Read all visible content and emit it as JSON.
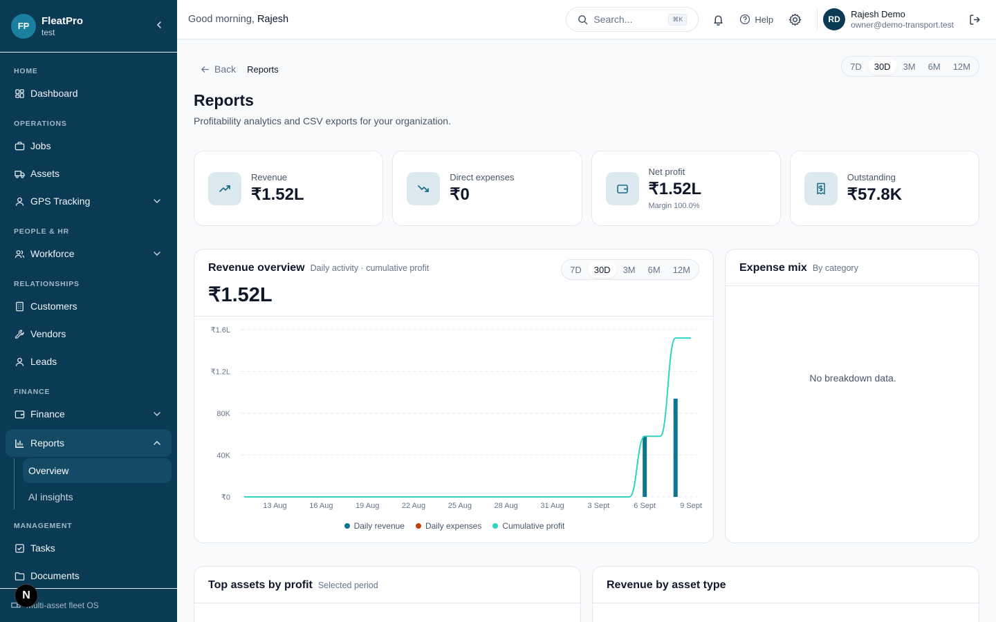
{
  "brand": {
    "initials": "FP",
    "name": "FleatPro",
    "org": "test"
  },
  "sidebar": {
    "sections": {
      "home": "HOME",
      "operations": "OPERATIONS",
      "people": "PEOPLE & HR",
      "relationships": "RELATIONSHIPS",
      "finance": "FINANCE",
      "management": "MANAGEMENT"
    },
    "items": {
      "dashboard": "Dashboard",
      "jobs": "Jobs",
      "assets": "Assets",
      "gps": "GPS Tracking",
      "workforce": "Workforce",
      "customers": "Customers",
      "vendors": "Vendors",
      "leads": "Leads",
      "finance": "Finance",
      "reports": "Reports",
      "overview": "Overview",
      "ai_insights": "AI insights",
      "tasks": "Tasks",
      "documents": "Documents"
    },
    "footer": "Multi-asset fleet OS",
    "badge": "N"
  },
  "header": {
    "greeting": "Good morning,",
    "user_first": "Rajesh",
    "search_placeholder": "Search...",
    "search_kbd": "⌘K",
    "help": "Help",
    "user_initials": "RD",
    "user_name": "Rajesh Demo",
    "user_email": "owner@demo-transport.test"
  },
  "page": {
    "back": "Back",
    "breadcrumb_current": "Reports",
    "title": "Reports",
    "subtitle": "Profitability analytics and CSV exports for your organization.",
    "ranges": [
      "7D",
      "30D",
      "3M",
      "6M",
      "12M"
    ],
    "selected_range": "30D"
  },
  "kpis": [
    {
      "label": "Revenue",
      "value": "₹1.52L",
      "note": "",
      "icon": "trending-up-icon"
    },
    {
      "label": "Direct expenses",
      "value": "₹0",
      "note": "",
      "icon": "trending-down-icon"
    },
    {
      "label": "Net profit",
      "value": "₹1.52L",
      "note": "Margin 100.0%",
      "icon": "wallet-icon"
    },
    {
      "label": "Outstanding",
      "value": "₹57.8K",
      "note": "",
      "icon": "receipt-icon"
    }
  ],
  "revenue_overview": {
    "title": "Revenue overview",
    "subtitle": "Daily activity · cumulative profit",
    "total": "₹1.52L"
  },
  "expense_mix": {
    "title": "Expense mix",
    "subtitle": "By category",
    "empty": "No breakdown data."
  },
  "bottom": {
    "top_assets_title": "Top assets by profit",
    "top_assets_sub": "Selected period",
    "rev_by_type_title": "Revenue by asset type"
  },
  "colors": {
    "sidebar": "#0b3a55",
    "revenue": "#0e7490",
    "expenses": "#c2410c",
    "profit": "#2dd4bf"
  },
  "chart_data": {
    "type": "bar",
    "x": [
      "11 Aug",
      "12 Aug",
      "13 Aug",
      "14 Aug",
      "15 Aug",
      "16 Aug",
      "17 Aug",
      "18 Aug",
      "19 Aug",
      "20 Aug",
      "21 Aug",
      "22 Aug",
      "23 Aug",
      "24 Aug",
      "25 Aug",
      "26 Aug",
      "27 Aug",
      "28 Aug",
      "29 Aug",
      "30 Aug",
      "31 Aug",
      "1 Sept",
      "2 Sept",
      "3 Sept",
      "4 Sept",
      "5 Sept",
      "6 Sept",
      "7 Sept",
      "8 Sept",
      "9 Sept"
    ],
    "tick_labels": [
      "13 Aug",
      "16 Aug",
      "19 Aug",
      "22 Aug",
      "25 Aug",
      "28 Aug",
      "31 Aug",
      "3 Sept",
      "6 Sept",
      "9 Sept"
    ],
    "y_tick_labels": [
      "₹0",
      "40K",
      "80K",
      "₹1.2L",
      "₹1.6L"
    ],
    "ylim": [
      0,
      160000
    ],
    "series": [
      {
        "name": "Daily revenue",
        "type": "bar",
        "values": [
          0,
          0,
          0,
          0,
          0,
          0,
          0,
          0,
          0,
          0,
          0,
          0,
          0,
          0,
          0,
          0,
          0,
          0,
          0,
          0,
          0,
          0,
          0,
          0,
          0,
          0,
          58000,
          0,
          94000,
          0
        ]
      },
      {
        "name": "Daily expenses",
        "type": "bar",
        "values": [
          0,
          0,
          0,
          0,
          0,
          0,
          0,
          0,
          0,
          0,
          0,
          0,
          0,
          0,
          0,
          0,
          0,
          0,
          0,
          0,
          0,
          0,
          0,
          0,
          0,
          0,
          0,
          0,
          0,
          0
        ]
      },
      {
        "name": "Cumulative profit",
        "type": "line",
        "values": [
          0,
          0,
          0,
          0,
          0,
          0,
          0,
          0,
          0,
          0,
          0,
          0,
          0,
          0,
          0,
          0,
          0,
          0,
          0,
          0,
          0,
          0,
          0,
          0,
          0,
          0,
          58000,
          58000,
          152000,
          152000
        ]
      }
    ],
    "grid": true,
    "legend": "bottom"
  }
}
